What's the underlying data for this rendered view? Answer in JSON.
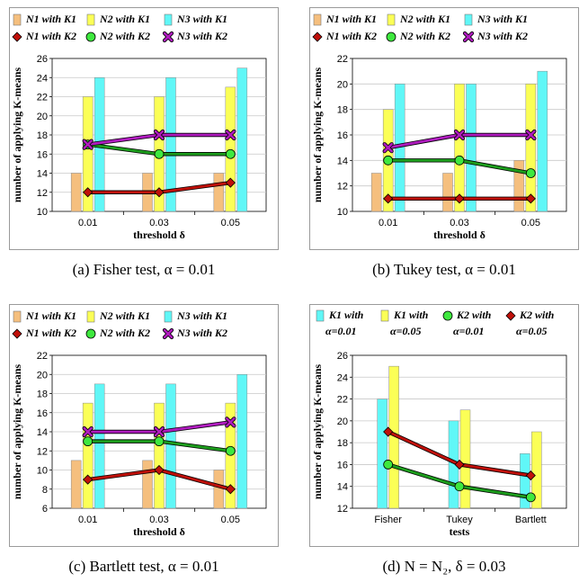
{
  "panels": [
    {
      "caption": "(a) Fisher test, α = 0.01",
      "chart_data": {
        "type": "bar",
        "xlabel": "threshold δ",
        "ylabel": "number of applying K-means",
        "categories": [
          "0.01",
          "0.03",
          "0.05"
        ],
        "ylim": [
          10,
          26
        ],
        "yticks": [
          10,
          12,
          14,
          16,
          18,
          20,
          22,
          24,
          26
        ],
        "grid": true,
        "legend": "top",
        "series": [
          {
            "name": "N1 with K1",
            "kind": "bar",
            "color": "#f5bf7e",
            "values": [
              14,
              14,
              14
            ]
          },
          {
            "name": "N2 with K1",
            "kind": "bar",
            "color": "#fbff56",
            "values": [
              22,
              22,
              23
            ]
          },
          {
            "name": "N3 with K1",
            "kind": "bar",
            "color": "#60f7f7",
            "values": [
              24,
              24,
              25
            ]
          },
          {
            "name": "N1 with K2",
            "kind": "line",
            "color": "#c0100a",
            "marker": "diamond",
            "values": [
              12,
              12,
              13
            ]
          },
          {
            "name": "N2 with K2",
            "kind": "line",
            "color": "#1d9e1d",
            "marker": "circle",
            "values": [
              17,
              16,
              16
            ]
          },
          {
            "name": "N3 with K2",
            "kind": "line",
            "color": "#b01cbf",
            "marker": "x",
            "values": [
              17,
              18,
              18
            ]
          }
        ]
      }
    },
    {
      "caption": "(b) Tukey test, α = 0.01",
      "chart_data": {
        "type": "bar",
        "xlabel": "threshold δ",
        "ylabel": "number of applying K-means",
        "categories": [
          "0.01",
          "0.03",
          "0.05"
        ],
        "ylim": [
          10,
          22
        ],
        "yticks": [
          10,
          12,
          14,
          16,
          18,
          20,
          22
        ],
        "grid": true,
        "legend": "top",
        "series": [
          {
            "name": "N1 with K1",
            "kind": "bar",
            "color": "#f5bf7e",
            "values": [
              13,
              13,
              14
            ]
          },
          {
            "name": "N2 with K1",
            "kind": "bar",
            "color": "#fbff56",
            "values": [
              18,
              20,
              20
            ]
          },
          {
            "name": "N3 with K1",
            "kind": "bar",
            "color": "#60f7f7",
            "values": [
              20,
              20,
              21
            ]
          },
          {
            "name": "N1 with K2",
            "kind": "line",
            "color": "#c0100a",
            "marker": "diamond",
            "values": [
              11,
              11,
              11
            ]
          },
          {
            "name": "N2 with K2",
            "kind": "line",
            "color": "#1d9e1d",
            "marker": "circle",
            "values": [
              14,
              14,
              13
            ]
          },
          {
            "name": "N3 with K2",
            "kind": "line",
            "color": "#b01cbf",
            "marker": "x",
            "values": [
              15,
              16,
              16
            ]
          }
        ]
      }
    },
    {
      "caption": "(c) Bartlett test, α = 0.01",
      "chart_data": {
        "type": "bar",
        "xlabel": "threshold δ",
        "ylabel": "number of applying K-means",
        "categories": [
          "0.01",
          "0.03",
          "0.05"
        ],
        "ylim": [
          6,
          22
        ],
        "yticks": [
          6,
          8,
          10,
          12,
          14,
          16,
          18,
          20,
          22
        ],
        "grid": true,
        "legend": "top",
        "series": [
          {
            "name": "N1 with K1",
            "kind": "bar",
            "color": "#f5bf7e",
            "values": [
              11,
              11,
              10
            ]
          },
          {
            "name": "N2 with K1",
            "kind": "bar",
            "color": "#fbff56",
            "values": [
              17,
              17,
              17
            ]
          },
          {
            "name": "N3 with K1",
            "kind": "bar",
            "color": "#60f7f7",
            "values": [
              19,
              19,
              20
            ]
          },
          {
            "name": "N1 with K2",
            "kind": "line",
            "color": "#c0100a",
            "marker": "diamond",
            "values": [
              9,
              10,
              8
            ]
          },
          {
            "name": "N2 with K2",
            "kind": "line",
            "color": "#1d9e1d",
            "marker": "circle",
            "values": [
              13,
              13,
              12
            ]
          },
          {
            "name": "N3 with K2",
            "kind": "line",
            "color": "#b01cbf",
            "marker": "x",
            "values": [
              14,
              14,
              15
            ]
          }
        ]
      }
    },
    {
      "caption": "(d) N = N₂, δ = 0.03",
      "chart_data": {
        "type": "bar",
        "xlabel": "tests",
        "ylabel": "number of applying K-means",
        "categories": [
          "Fisher",
          "Tukey",
          "Bartlett"
        ],
        "ylim": [
          12,
          26
        ],
        "yticks": [
          12,
          14,
          16,
          18,
          20,
          22,
          24,
          26
        ],
        "grid": true,
        "legend": "top",
        "series": [
          {
            "name": "K1 with α=0.01",
            "kind": "bar",
            "color": "#60f7f7",
            "values": [
              22,
              20,
              17
            ]
          },
          {
            "name": "K1 with α=0.05",
            "kind": "bar",
            "color": "#fbff56",
            "values": [
              25,
              21,
              19
            ]
          },
          {
            "name": "K2 with α=0.01",
            "kind": "line",
            "color": "#1d9e1d",
            "marker": "circle",
            "values": [
              16,
              14,
              13
            ]
          },
          {
            "name": "K2 with α=0.05",
            "kind": "line",
            "color": "#c0100a",
            "marker": "diamond",
            "values": [
              19,
              16,
              15
            ]
          }
        ]
      }
    }
  ]
}
